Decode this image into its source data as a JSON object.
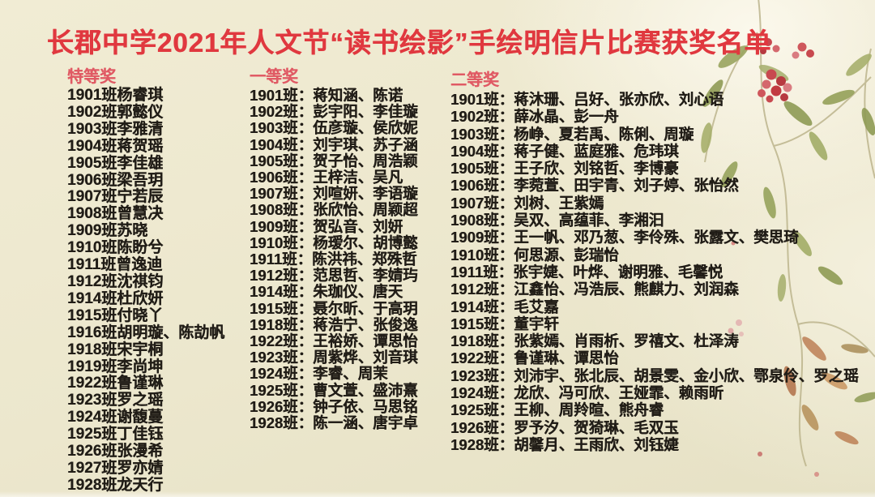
{
  "title": "长郡中学2021年人文节“读书绘影”手绘明信片比赛获奖名单",
  "colors": {
    "background": "#ece7cd",
    "title_red": "#e0383f",
    "header_pink": "#e05a64",
    "body_text": "#211d17",
    "berry_red": "#c8494f",
    "leaf_green": "#8f9b55"
  },
  "decoration": "watercolor-branch-with-red-berries-and-leaves",
  "columns": [
    {
      "header": "特等奖",
      "entries": [
        "1901班杨睿琪",
        "1902班郭懿仪",
        "1903班李雅清",
        "1904班蒋贺瑶",
        "1905班李佳雄",
        "1906班梁吾玥",
        "1907班宁若辰",
        "1908班曾慧决",
        "1909班苏晓",
        "1910班陈盼兮",
        "1911班曾逸迪",
        "1912班沈祺钧",
        "1914班杜欣妍",
        "1915班付晓丫",
        "1916班胡明璇、陈劼帆",
        "1918班宋宇桐",
        "1919班李尚坤",
        "1922班鲁谨琳",
        "1923班罗之瑶",
        "1924班谢馥蔓",
        "1925班丁佳钰",
        "1926班张漫希",
        "1927班罗亦婧",
        "1928班龙天行"
      ]
    },
    {
      "header": "一等奖",
      "entries": [
        "1901班：蒋知涵、陈诺",
        "1902班：彭宇阳、李佳璇",
        "1903班：伍彦璇、侯欣妮",
        "1904班：刘宇琪、苏子涵",
        "1905班：贺子怡、周浩颖",
        "1906班：王梓洁、吴凡",
        "1907班：刘喧妍、李语璇",
        "1908班：张欣怡、周颖超",
        "1909班：贺弘音、刘妍",
        "1910班：杨瑷尔、胡博懿",
        "1911班：陈洪祎、郑殊哲",
        "1912班：范思哲、李婧玙",
        "1914班：朱珈仪、唐天",
        "1915班：聂尔昕、于高玥",
        "1918班：蒋浩宁、张俊逸",
        "1922班：王裕娇、谭思怡",
        "1923班：周紫烨、刘音琪",
        "1924班：李睿、周茉",
        "1925班：曹文萱、盛沛熹",
        "1926班：钟子依、马思铭",
        "1928班：陈一涵、唐宇卓"
      ]
    },
    {
      "header": "二等奖",
      "entries": [
        "1901班：蒋沐珊、吕好、张亦欣、刘心语",
        "1902班：薛冰晶、彭一舟",
        "1903班：杨峥、夏若禹、陈俐、周璇",
        "1904班：蒋子健、蓝庭雅、危玮琪",
        "1905班：王子欣、刘铭哲、李博豪",
        "1906班：李菀萱、田宇青、刘子婷、张怡然",
        "1907班：刘树、王紫嫣",
        "1908班：吴双、高蕴菲、李湘汩",
        "1909班：王一帆、邓乃葱、李伶殊、张露文、樊思琦",
        "1910班：何思源、彭瑞怡",
        "1911班：张宇婕、叶烨、谢明雅、毛馨悦",
        "1912班：江鑫怡、冯浩辰、熊麒力、刘润森",
        "1914班：毛艾嘉",
        "1915班：董宇轩",
        "1918班：张紫嫣、肖雨析、罗禧文、杜泽涛",
        "1922班：鲁谨琳、谭思怡",
        "1923班：刘沛宇、张北辰、胡景雯、金小欣、鄂泉伶、罗之瑶",
        "1924班：龙欣、冯可欣、王娅霏、赖雨昕",
        "1925班：王柳、周羚暄、熊舟睿",
        "1926班：罗予汐、贺猗琳、毛双玉",
        "1928班：胡馨月、王雨欣、刘钰婕"
      ]
    }
  ]
}
